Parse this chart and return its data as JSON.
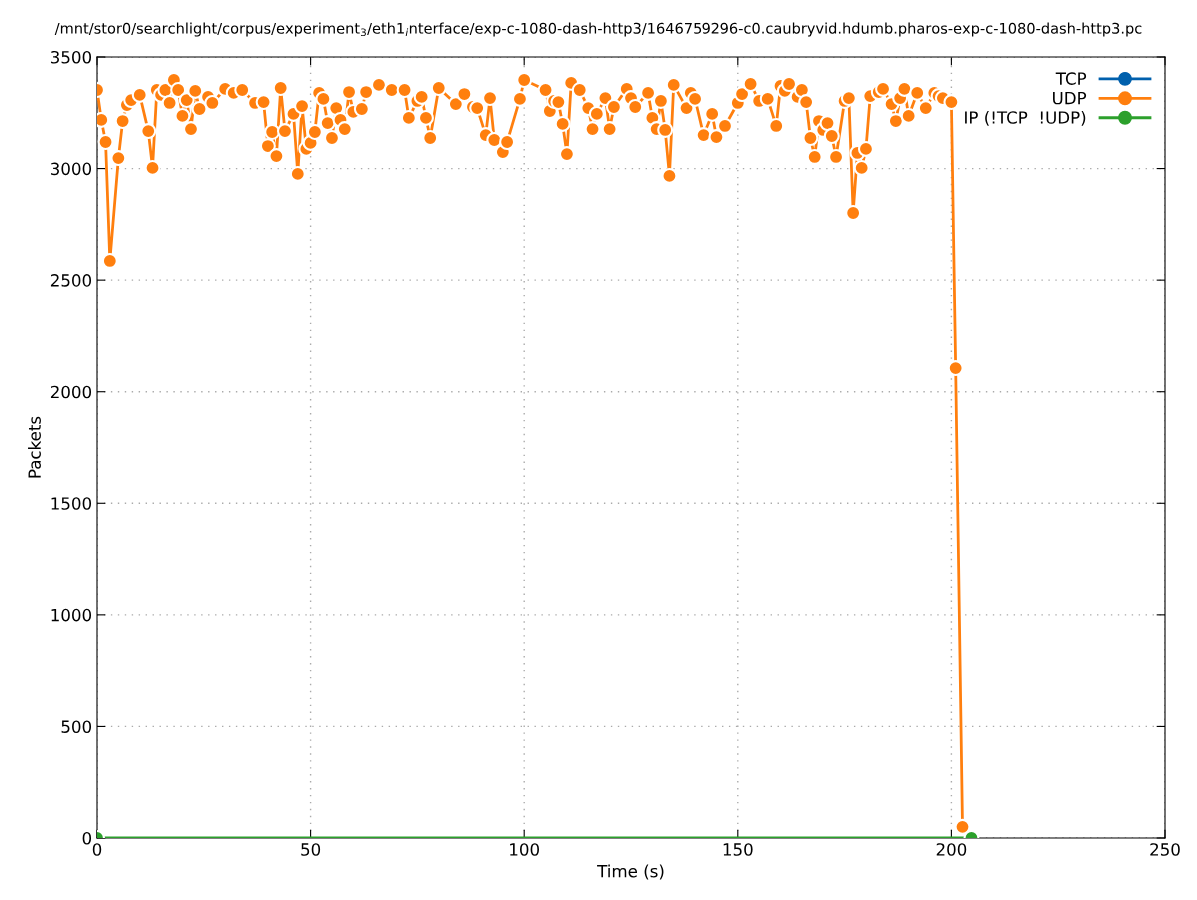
{
  "chart_data": {
    "type": "line",
    "title": "/mnt/stor0/searchlight/corpus/experiment$_{3}$/eth1$_{i}$nterface/exp-c-1080-dash-http3/1646759296-c0.caubryvid.hdumb.pharos-exp-c-1080-dash-http3.pc",
    "xlabel": "Time (s)",
    "ylabel": "Packets",
    "xlim": [
      0,
      250
    ],
    "xticks": [
      0,
      50,
      100,
      150,
      200,
      250
    ],
    "ylim": [
      0,
      3500
    ],
    "yticks": [
      0,
      500,
      1000,
      1500,
      2000,
      2500,
      3000,
      3500
    ],
    "grid": true,
    "legend": "top right",
    "marker": "circle",
    "line_style": "solid",
    "series": [
      {
        "name": "TCP",
        "color": "#0060ad"
      },
      {
        "name": "UDP",
        "color": "#ff7f0e",
        "x": [
          0,
          1,
          2,
          3,
          5,
          6,
          7,
          8,
          10,
          12,
          13,
          14,
          15,
          16,
          17,
          18,
          19,
          20,
          21,
          22,
          23,
          24,
          26,
          27,
          30,
          32,
          34,
          37,
          39,
          40,
          41,
          42,
          43,
          44,
          46,
          47,
          48,
          49,
          50,
          51,
          52,
          53,
          54,
          55,
          56,
          57,
          58,
          59,
          60,
          62,
          63,
          66,
          69,
          72,
          73,
          75,
          76,
          77,
          78,
          80,
          84,
          86,
          88,
          89,
          91,
          92,
          93,
          95,
          96,
          99,
          100,
          105,
          106,
          107,
          108,
          109,
          110,
          111,
          113,
          115,
          116,
          117,
          119,
          120,
          121,
          124,
          125,
          126,
          129,
          130,
          131,
          132,
          133,
          134,
          135,
          138,
          139,
          140,
          142,
          144,
          145,
          147,
          150,
          151,
          153,
          155,
          157,
          159,
          160,
          161,
          162,
          164,
          165,
          166,
          167,
          168,
          169,
          170,
          171,
          172,
          173,
          175,
          176,
          177,
          178,
          179,
          180,
          181,
          183,
          184,
          186,
          187,
          188,
          189,
          190,
          192,
          194,
          196,
          197,
          198,
          200,
          201,
          202.6
        ],
        "values": [
          3352,
          3218,
          3119,
          2586,
          3047,
          3213,
          3285,
          3307,
          3330,
          3168,
          3003,
          3352,
          3330,
          3352,
          3294,
          3397,
          3352,
          3236,
          3307,
          3177,
          3348,
          3267,
          3321,
          3294,
          3357,
          3339,
          3352,
          3294,
          3298,
          3101,
          3164,
          3056,
          3361,
          3168,
          3245,
          2976,
          3280,
          3088,
          3115,
          3164,
          3339,
          3312,
          3204,
          3137,
          3271,
          3218,
          3177,
          3343,
          3254,
          3267,
          3343,
          3375,
          3352,
          3352,
          3227,
          3303,
          3321,
          3227,
          3137,
          3361,
          3289,
          3334,
          3276,
          3271,
          3150,
          3316,
          3128,
          3074,
          3119,
          3312,
          3397,
          3352,
          3258,
          3303,
          3298,
          3200,
          3065,
          3384,
          3352,
          3271,
          3177,
          3245,
          3316,
          3177,
          3276,
          3357,
          3316,
          3276,
          3339,
          3227,
          3177,
          3303,
          3173,
          2967,
          3375,
          3271,
          3339,
          3312,
          3150,
          3245,
          3141,
          3191,
          3294,
          3334,
          3379,
          3303,
          3312,
          3191,
          3370,
          3348,
          3379,
          3321,
          3352,
          3298,
          3137,
          3052,
          3213,
          3173,
          3204,
          3146,
          3052,
          3303,
          3316,
          2801,
          3070,
          3003,
          3088,
          3325,
          3343,
          3357,
          3289,
          3213,
          3316,
          3357,
          3236,
          3339,
          3271,
          3339,
          3325,
          3316,
          3298,
          2106,
          50
        ]
      },
      {
        "name": "IP (!TCP  !UDP)",
        "color": "#2ca02c",
        "x": [
          0,
          204.7
        ],
        "values": [
          0,
          0
        ]
      }
    ]
  }
}
